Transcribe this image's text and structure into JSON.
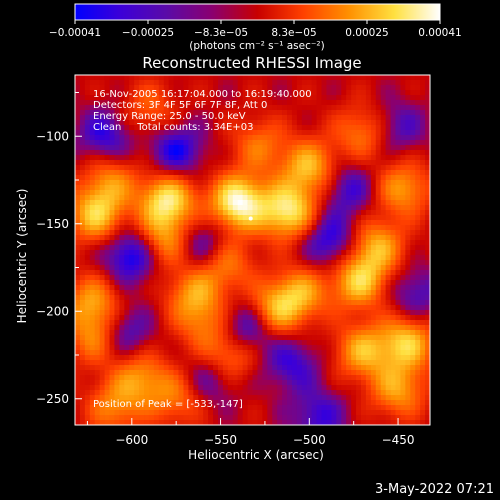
{
  "chart_data": {
    "type": "heatmap",
    "title": "Reconstructed RHESSI Image",
    "xlabel": "Heliocentric X (arcsec)",
    "ylabel": "Heliocentric Y (arcsec)",
    "xlim": [
      -632,
      -432
    ],
    "ylim": [
      -265,
      -65
    ],
    "x_ticks": [
      {
        "value": -600,
        "label": "−600"
      },
      {
        "value": -550,
        "label": "−550"
      },
      {
        "value": -500,
        "label": "−500"
      },
      {
        "value": -450,
        "label": "−450"
      }
    ],
    "y_ticks": [
      {
        "value": -100,
        "label": "−100"
      },
      {
        "value": -150,
        "label": "−150"
      },
      {
        "value": -200,
        "label": "−200"
      },
      {
        "value": -250,
        "label": "−250"
      }
    ],
    "annotations": [
      "16-Nov-2005 16:17:04.000 to 16:19:40.000",
      "Detectors: 3F 4F 5F 6F 7F 8F, Att 0",
      "Energy Range: 25.0 - 50.0 keV",
      "Clean     Total counts: 3.34E+03"
    ],
    "peak_label": "Position of Peak = [-533,-147]",
    "peak": {
      "x": -533,
      "y": -147
    },
    "colorbar": {
      "colormap": "blue-purple-red-yellow-white",
      "range": [
        -0.00041,
        0.00041
      ],
      "tick_labels": [
        "−0.00041",
        "−0.00025",
        "−8.3e−05",
        "8.3e−05",
        "0.00025",
        "0.00041"
      ],
      "unit_label": "(photons cm⁻² s⁻¹ asec⁻²)",
      "colors": [
        "#0000ff",
        "#3c00d8",
        "#5a0aa8",
        "#8a0070",
        "#c80000",
        "#ff4000",
        "#ff9000",
        "#ffe040",
        "#ffffff"
      ]
    },
    "blobs": [
      {
        "x": -540,
        "y": -138,
        "v": 1.0
      },
      {
        "x": -580,
        "y": -137,
        "v": 0.85
      },
      {
        "x": -582,
        "y": -160,
        "v": 0.55
      },
      {
        "x": -512,
        "y": -143,
        "v": 0.85
      },
      {
        "x": -500,
        "y": -118,
        "v": 0.65
      },
      {
        "x": -520,
        "y": -200,
        "v": 0.6
      },
      {
        "x": -505,
        "y": -190,
        "v": 0.55
      },
      {
        "x": -472,
        "y": -183,
        "v": 0.7
      },
      {
        "x": -462,
        "y": -163,
        "v": 0.6
      },
      {
        "x": -620,
        "y": -145,
        "v": 0.7
      },
      {
        "x": -612,
        "y": -125,
        "v": 0.45
      },
      {
        "x": -565,
        "y": -190,
        "v": 0.5
      },
      {
        "x": -547,
        "y": -173,
        "v": 0.45
      },
      {
        "x": -470,
        "y": -223,
        "v": 0.6
      },
      {
        "x": -445,
        "y": -218,
        "v": 0.7
      },
      {
        "x": -450,
        "y": -245,
        "v": 0.55
      },
      {
        "x": -545,
        "y": -225,
        "v": 0.55
      },
      {
        "x": -595,
        "y": -238,
        "v": 0.5
      },
      {
        "x": -620,
        "y": -215,
        "v": 0.5
      },
      {
        "x": -622,
        "y": -195,
        "v": 0.55
      },
      {
        "x": -447,
        "y": -130,
        "v": 0.55
      },
      {
        "x": -470,
        "y": -98,
        "v": 0.45
      },
      {
        "x": -590,
        "y": -85,
        "v": 0.35
      },
      {
        "x": -528,
        "y": -105,
        "v": 0.4
      },
      {
        "x": -575,
        "y": -250,
        "v": 0.4
      },
      {
        "x": -560,
        "y": -207,
        "v": 0.35
      },
      {
        "x": -610,
        "y": -255,
        "v": 0.45
      },
      {
        "x": -600,
        "y": -168,
        "v": -0.6
      },
      {
        "x": -535,
        "y": -210,
        "v": -0.55
      },
      {
        "x": -575,
        "y": -108,
        "v": -0.5
      },
      {
        "x": -488,
        "y": -160,
        "v": -0.5
      },
      {
        "x": -615,
        "y": -100,
        "v": -0.45
      },
      {
        "x": -560,
        "y": -162,
        "v": -0.4
      },
      {
        "x": -605,
        "y": -212,
        "v": -0.45
      },
      {
        "x": -510,
        "y": -230,
        "v": -0.4
      },
      {
        "x": -478,
        "y": -130,
        "v": -0.4
      },
      {
        "x": -450,
        "y": -95,
        "v": -0.35
      },
      {
        "x": -495,
        "y": -260,
        "v": -0.4
      },
      {
        "x": -555,
        "y": -238,
        "v": -0.35
      },
      {
        "x": -440,
        "y": -190,
        "v": -0.35
      }
    ]
  },
  "footer": {
    "date": "3-May-2022 07:21"
  }
}
